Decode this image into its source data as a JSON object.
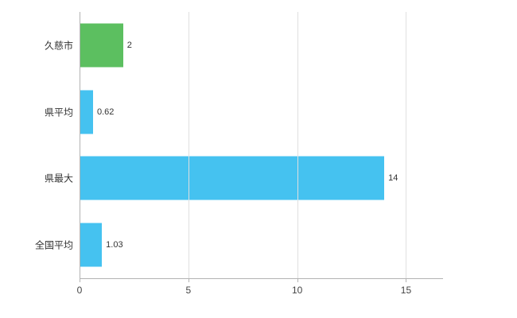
{
  "chart_data": {
    "type": "bar",
    "orientation": "horizontal",
    "categories": [
      "久慈市",
      "県平均",
      "県最大",
      "全国平均"
    ],
    "values": [
      2,
      0.62,
      14,
      1.03
    ],
    "value_labels": [
      "2",
      "0.62",
      "14",
      "1.03"
    ],
    "bar_colors": [
      "#5cbf60",
      "#45c2f0",
      "#45c2f0",
      "#45c2f0"
    ],
    "title": "",
    "xlabel": "",
    "ylabel": "",
    "xlim": [
      0,
      16.7
    ],
    "ticks": [
      0,
      5,
      10,
      15
    ],
    "grid": true,
    "legend": "none",
    "colors": {
      "gridline": "#e0e0e0",
      "axis": "#b3b3b3",
      "text": "#333333",
      "background": "#ffffff"
    }
  }
}
